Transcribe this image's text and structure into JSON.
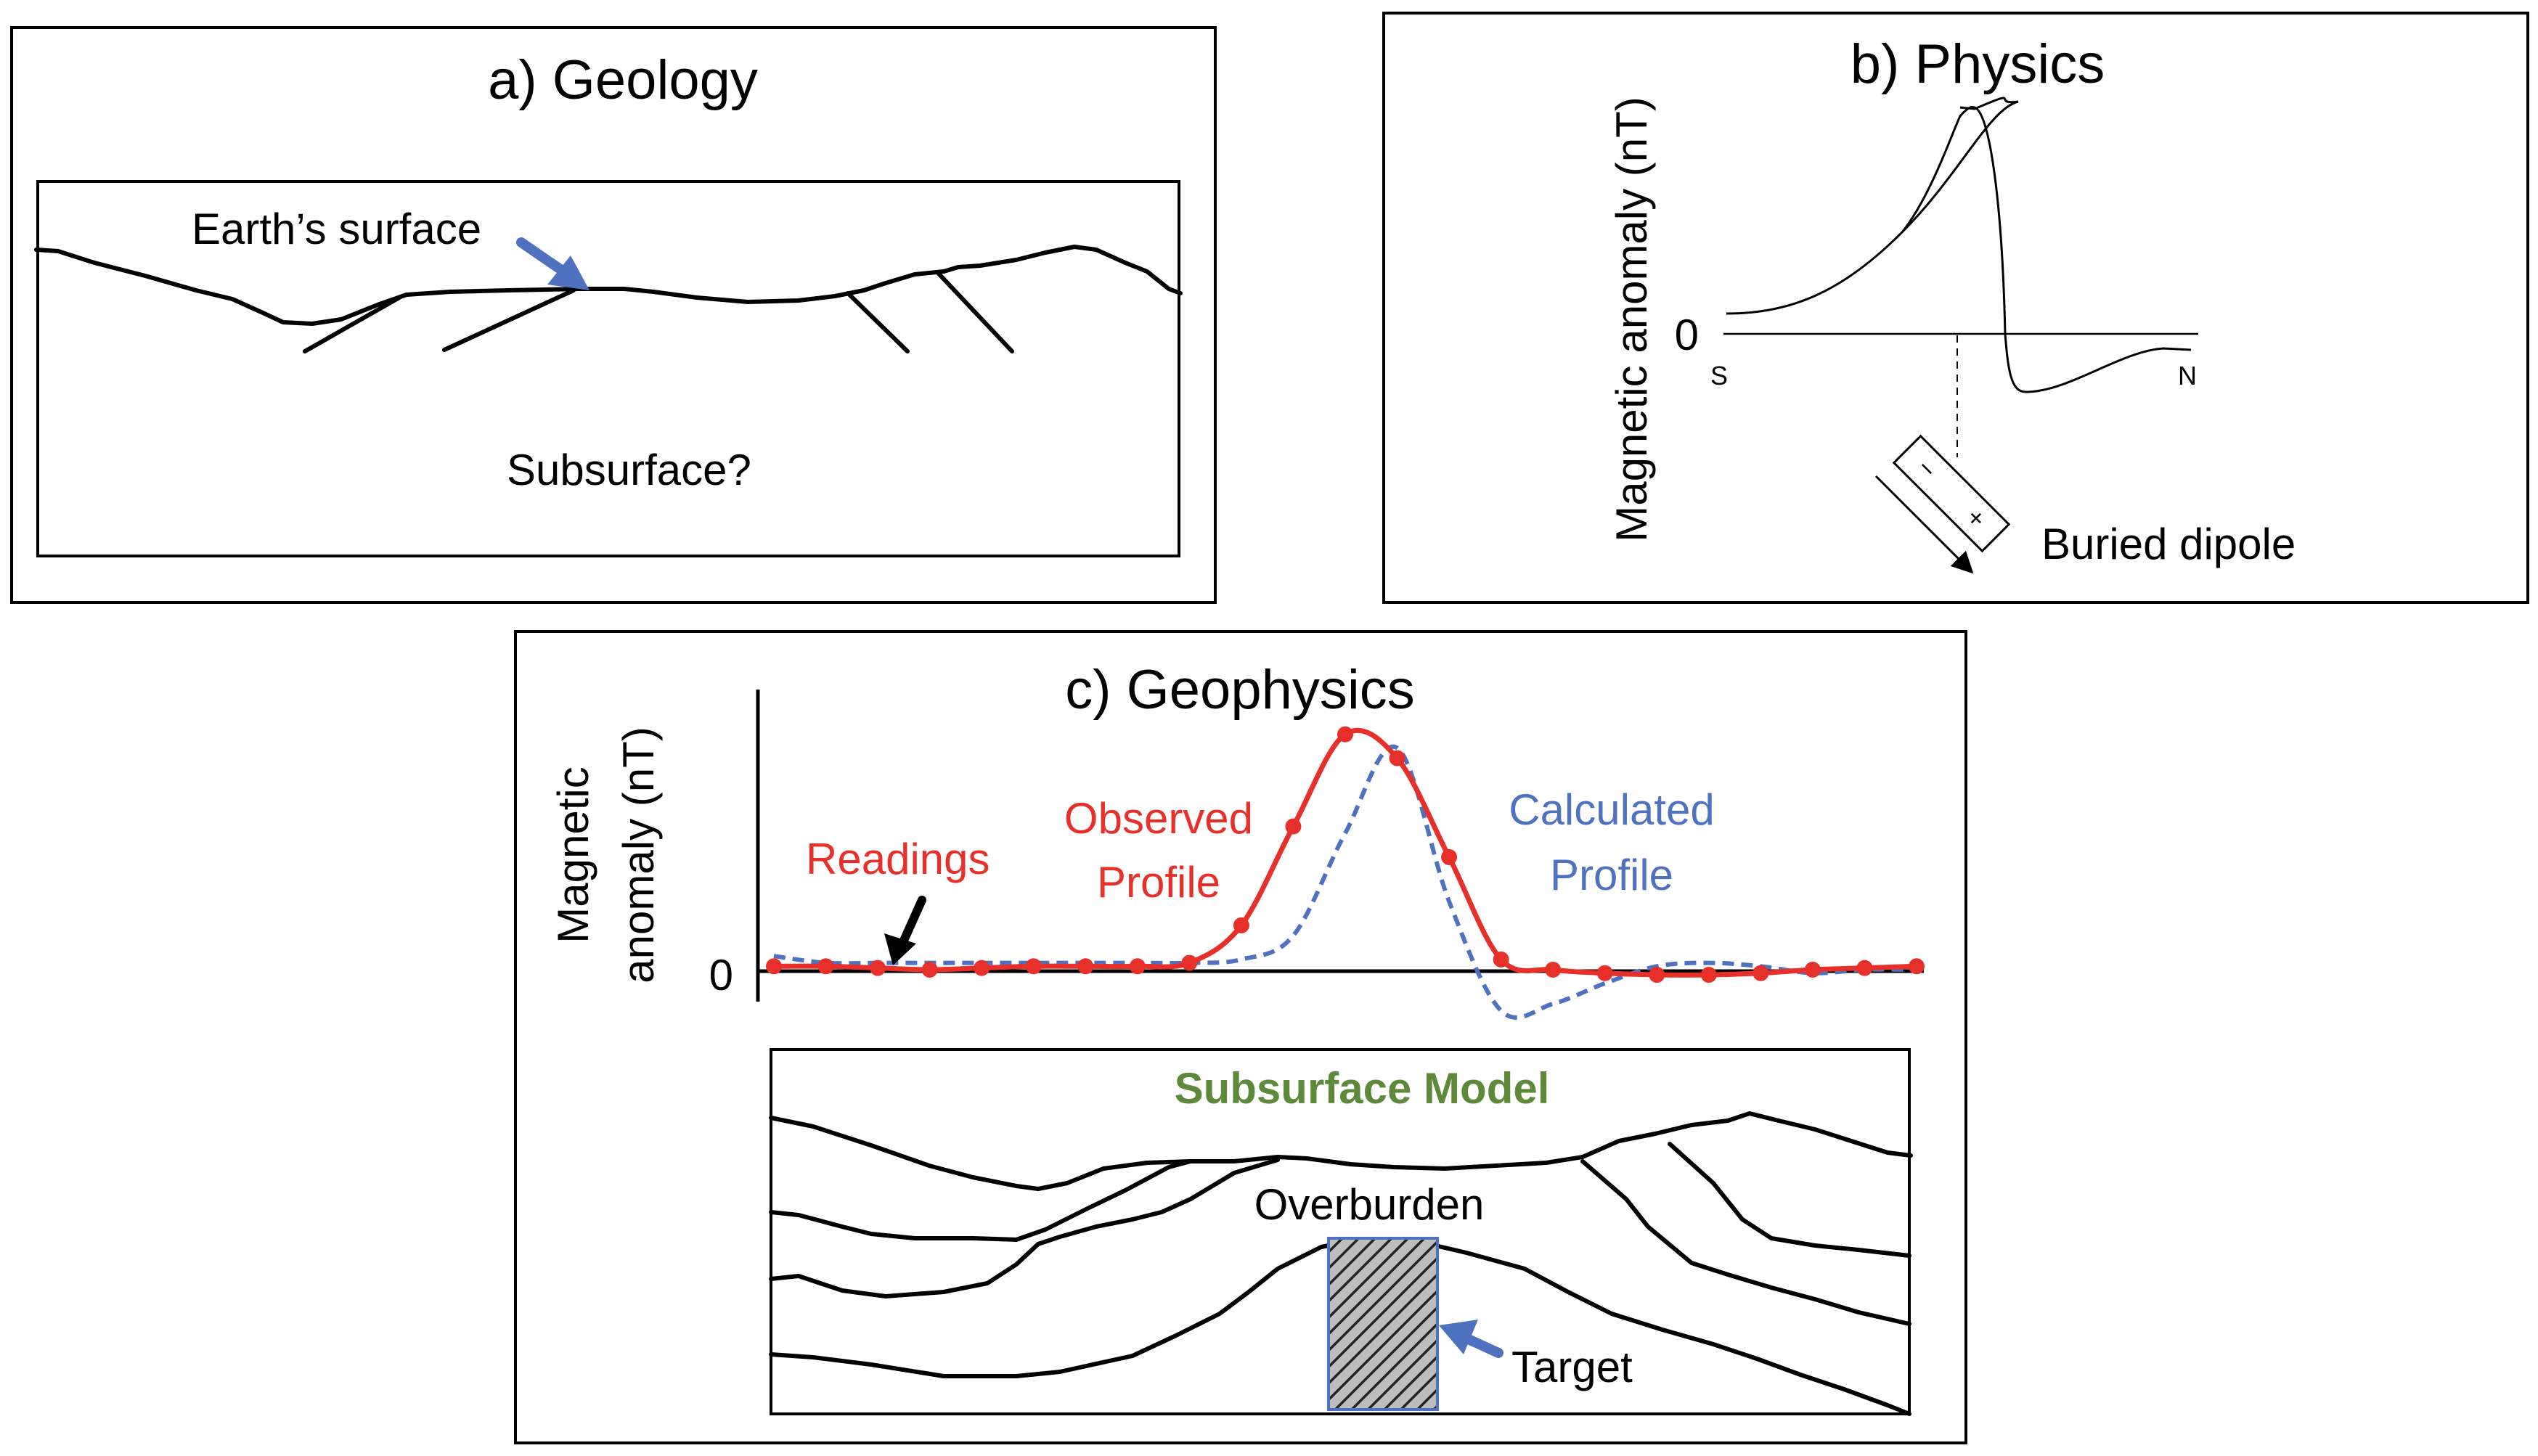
{
  "panel_a": {
    "title": "a) Geology",
    "earth_surface_label": "Earth’s surface",
    "subsurface_label": "Subsurface?"
  },
  "panel_b": {
    "title": "b) Physics",
    "ylabel": "Magnetic anomaly (nT)",
    "zero_label": "0",
    "south_label": "S",
    "north_label": "N",
    "dipole_minus": "−",
    "dipole_plus": "+",
    "dipole_label": "Buried dipole"
  },
  "panel_c": {
    "title": "c) Geophysics",
    "ylabel_line1": "Magnetic",
    "ylabel_line2": "anomaly (nT)",
    "zero_label": "0",
    "readings_label": "Readings",
    "observed_line1": "Observed",
    "observed_line2": "Profile",
    "calculated_line1": "Calculated",
    "calculated_line2": "Profile",
    "model_title": "Subsurface Model",
    "overburden_label": "Overburden",
    "target_label": "Target"
  },
  "colors": {
    "observed": "#e8302a",
    "calculated": "#4f72c0",
    "model_title": "#5d8a3a",
    "arrow": "#4f72c0"
  },
  "chart_data": {
    "type": "line",
    "series": [
      {
        "name": "Observed Profile",
        "style": "solid-with-dots",
        "values": [
          0.1,
          0.1,
          0.05,
          0.0,
          0.05,
          0.1,
          0.1,
          0.1,
          0.2,
          1.3,
          4.2,
          6.9,
          6.2,
          3.3,
          0.3,
          0.0,
          -0.1,
          -0.15,
          -0.15,
          -0.1,
          0.0,
          0.05,
          0.1
        ]
      },
      {
        "name": "Calculated Profile",
        "style": "dashed",
        "values": [
          0.4,
          0.2,
          0.2,
          0.2,
          0.2,
          0.2,
          0.2,
          0.2,
          0.2,
          0.3,
          1.0,
          4.0,
          6.5,
          2.0,
          -1.2,
          -1.0,
          -0.4,
          0.1,
          0.2,
          0.1,
          -0.1,
          0.0,
          0.0
        ]
      }
    ]
  }
}
